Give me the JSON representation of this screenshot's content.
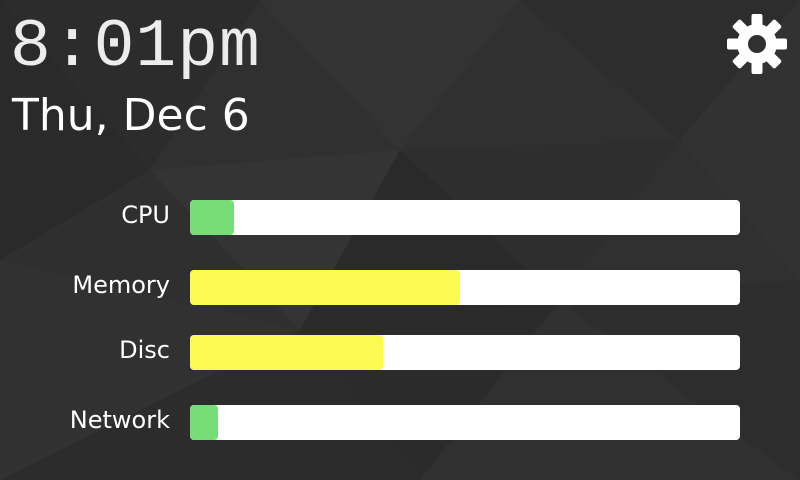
{
  "clock": {
    "time": "8:01pm",
    "date": "Thu, Dec 6"
  },
  "settings": {
    "icon": "gear-icon"
  },
  "metrics": [
    {
      "label": "CPU",
      "percent": 8,
      "color": "#77dd77"
    },
    {
      "label": "Memory",
      "percent": 49,
      "color": "#fbfb52"
    },
    {
      "label": "Disc",
      "percent": 35,
      "color": "#fbfb52"
    },
    {
      "label": "Network",
      "percent": 5,
      "color": "#77dd77"
    }
  ],
  "colors": {
    "background": "#2f2f2f",
    "track": "#ffffff",
    "ok": "#77dd77",
    "warn": "#fbfb52"
  }
}
